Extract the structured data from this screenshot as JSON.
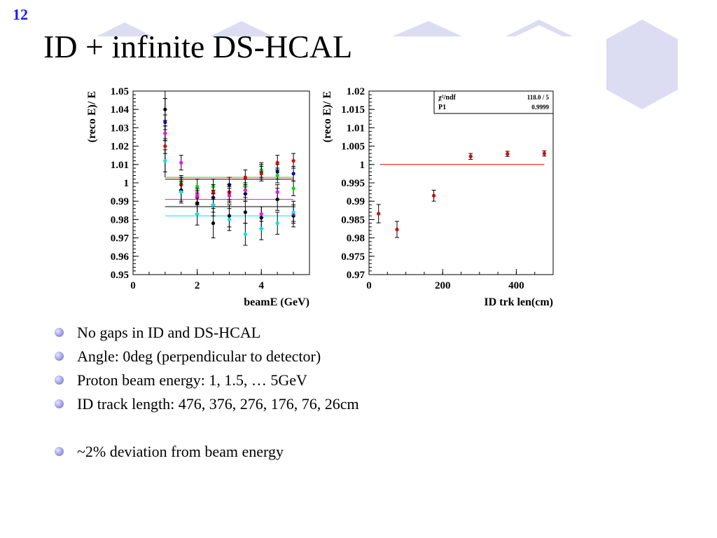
{
  "slide_number": "12",
  "title": "ID + infinite DS-HCAL",
  "colors": {
    "slide_number": "#1a1aff",
    "deco": "#dcdcf2",
    "bullet": "#8c8ce0"
  },
  "bullets": [
    "No gaps in ID and DS-HCAL",
    "Angle: 0deg (perpendicular to detector)",
    "Proton beam energy: 1, 1.5, … 5GeV",
    "ID track length: 476, 376, 276, 176, 76, 26cm",
    "~2% deviation from beam energy"
  ],
  "chart_data": [
    {
      "type": "scatter",
      "xlabel": "beamE (GeV)",
      "ylabel": "(reco E)/ E",
      "xlim": [
        0,
        5.5
      ],
      "ylim": [
        0.95,
        1.05
      ],
      "x_ticks": [
        "0",
        "2",
        "4"
      ],
      "y_ticks": [
        "0.95",
        "0.96",
        "0.97",
        "0.98",
        "0.99",
        "1",
        "1.01",
        "1.02",
        "1.03",
        "1.04",
        "1.05"
      ],
      "series": [
        {
          "color": "#000000",
          "x": [
            1,
            1.5,
            2,
            2.5,
            3,
            3.5,
            4,
            4.5,
            5
          ],
          "y": [
            1.04,
            0.996,
            0.989,
            0.978,
            0.982,
            0.984,
            0.981,
            0.991,
            0.982
          ],
          "err": [
            0.006,
            0.006,
            0.006,
            0.008,
            0.006,
            0.006,
            0.006,
            0.006,
            0.006
          ],
          "fit": 0.987
        },
        {
          "color": "#0000cc",
          "x": [
            1,
            1.5,
            2,
            2.5,
            3,
            3.5,
            4,
            4.5,
            5
          ],
          "y": [
            1.033,
            0.999,
            0.992,
            0.992,
            0.999,
            0.994,
            1.006,
            1.006,
            1.005
          ],
          "err": [
            0.004,
            0.004,
            0.004,
            0.004,
            0.004,
            0.004,
            0.004,
            0.004,
            0.004
          ],
          "fit": 1.002
        },
        {
          "color": "#00dd00",
          "x": [
            1,
            1.5,
            2,
            2.5,
            3,
            3.5,
            4,
            4.5,
            5
          ],
          "y": [
            1.027,
            1.0,
            0.998,
            0.998,
            0.994,
            0.998,
            1.007,
            1.004,
            0.997
          ],
          "err": [
            0.004,
            0.004,
            0.004,
            0.004,
            0.004,
            0.004,
            0.004,
            0.004,
            0.004
          ],
          "fit": 1.003
        },
        {
          "color": "#dd0000",
          "x": [
            1,
            1.5,
            2,
            2.5,
            3,
            3.5,
            4,
            4.5,
            5
          ],
          "y": [
            1.02,
            0.999,
            0.992,
            0.995,
            0.995,
            1.003,
            1.005,
            1.011,
            1.012
          ],
          "err": [
            0.004,
            0.004,
            0.004,
            0.004,
            0.004,
            0.004,
            0.004,
            0.004,
            0.004
          ],
          "fit": 1.002
        },
        {
          "color": "#ff00ff",
          "x": [
            1,
            1.5,
            2,
            2.5,
            3,
            3.5,
            4,
            4.5,
            5
          ],
          "y": [
            1.027,
            1.011,
            0.993,
            0.988,
            0.993,
            0.996,
            0.983,
            0.995,
            0.983
          ],
          "err": [
            0.004,
            0.004,
            0.004,
            0.004,
            0.004,
            0.004,
            0.004,
            0.004,
            0.004
          ],
          "fit": 0.991
        },
        {
          "color": "#00e5e5",
          "x": [
            1,
            1.5,
            2,
            2.5,
            3,
            3.5,
            4,
            4.5,
            5
          ],
          "y": [
            1.012,
            0.995,
            0.983,
            0.988,
            0.98,
            0.972,
            0.975,
            0.978,
            0.984
          ],
          "err": [
            0.006,
            0.006,
            0.006,
            0.006,
            0.006,
            0.006,
            0.006,
            0.006,
            0.006
          ],
          "fit": 0.982
        }
      ]
    },
    {
      "type": "scatter",
      "xlabel": "ID trk len(cm)",
      "ylabel": "(reco E)/ E",
      "xlim": [
        0,
        500
      ],
      "ylim": [
        0.97,
        1.02
      ],
      "x_ticks": [
        "0",
        "200",
        "400"
      ],
      "y_ticks": [
        "0.97",
        "0.975",
        "0.98",
        "0.985",
        "0.99",
        "0.995",
        "1",
        "1.005",
        "1.01",
        "1.015",
        "1.02"
      ],
      "stats_box": [
        {
          "label": "χ²/ndf",
          "value": "118.0  /  5"
        },
        {
          "label": "P1",
          "value": "0.9999"
        }
      ],
      "fit": {
        "value": 1.0,
        "x_range": [
          30,
          476
        ],
        "color": "#dd0000"
      },
      "points": {
        "color": "#dd0000",
        "x": [
          26,
          76,
          176,
          276,
          376,
          476
        ],
        "y": [
          0.9866,
          0.9823,
          0.9915,
          1.0022,
          1.0029,
          1.003
        ],
        "err": [
          0.0025,
          0.0022,
          0.0015,
          0.0008,
          0.0007,
          0.0007
        ]
      }
    }
  ]
}
